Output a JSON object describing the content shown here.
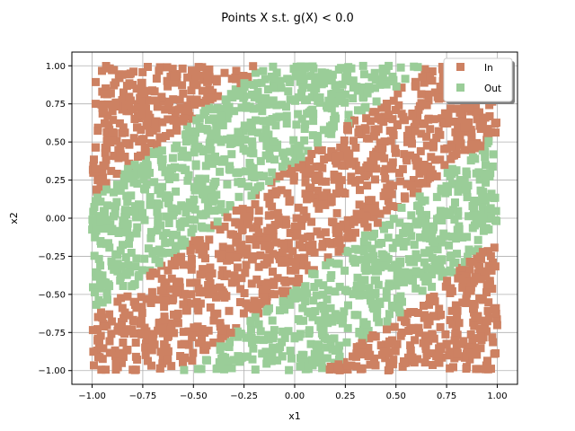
{
  "chart_data": {
    "type": "scatter",
    "title": "Points X s.t. g(X) < 0.0",
    "xlabel": "x1",
    "ylabel": "x2",
    "xlim": [
      -1.1,
      1.1
    ],
    "ylim": [
      -1.09,
      1.09
    ],
    "xticks": [
      -1.0,
      -0.75,
      -0.5,
      -0.25,
      0.0,
      0.25,
      0.5,
      0.75,
      1.0
    ],
    "xtick_labels": [
      "−1.00",
      "−0.75",
      "−0.50",
      "−0.25",
      "0.00",
      "0.25",
      "0.50",
      "0.75",
      "1.00"
    ],
    "yticks": [
      -1.0,
      -0.75,
      -0.5,
      -0.25,
      0.0,
      0.25,
      0.5,
      0.75,
      1.0
    ],
    "ytick_labels": [
      "−1.00",
      "−0.75",
      "−0.50",
      "−0.25",
      "0.00",
      "0.25",
      "0.50",
      "0.75",
      "1.00"
    ],
    "grid": true,
    "legend_position": "top-right",
    "series": [
      {
        "name": "In",
        "color": "#cd8162",
        "marker": "square"
      },
      {
        "name": "Out",
        "color": "#9acd98",
        "marker": "square"
      }
    ],
    "region_rule": "diagonal bands: points with (x2 - x1) in [-1.15,-0.45] or [0.35,1.15] are Out, remaining points in [-1,1]x[-1,1] are In",
    "out_bands": [
      {
        "x2_minus_x1_min": -1.15,
        "x2_minus_x1_max": -0.45
      },
      {
        "x2_minus_x1_min": 0.35,
        "x2_minus_x1_max": 1.15
      }
    ],
    "domain": {
      "x": [
        -1.0,
        1.0
      ],
      "y": [
        -1.0,
        1.0
      ]
    }
  }
}
